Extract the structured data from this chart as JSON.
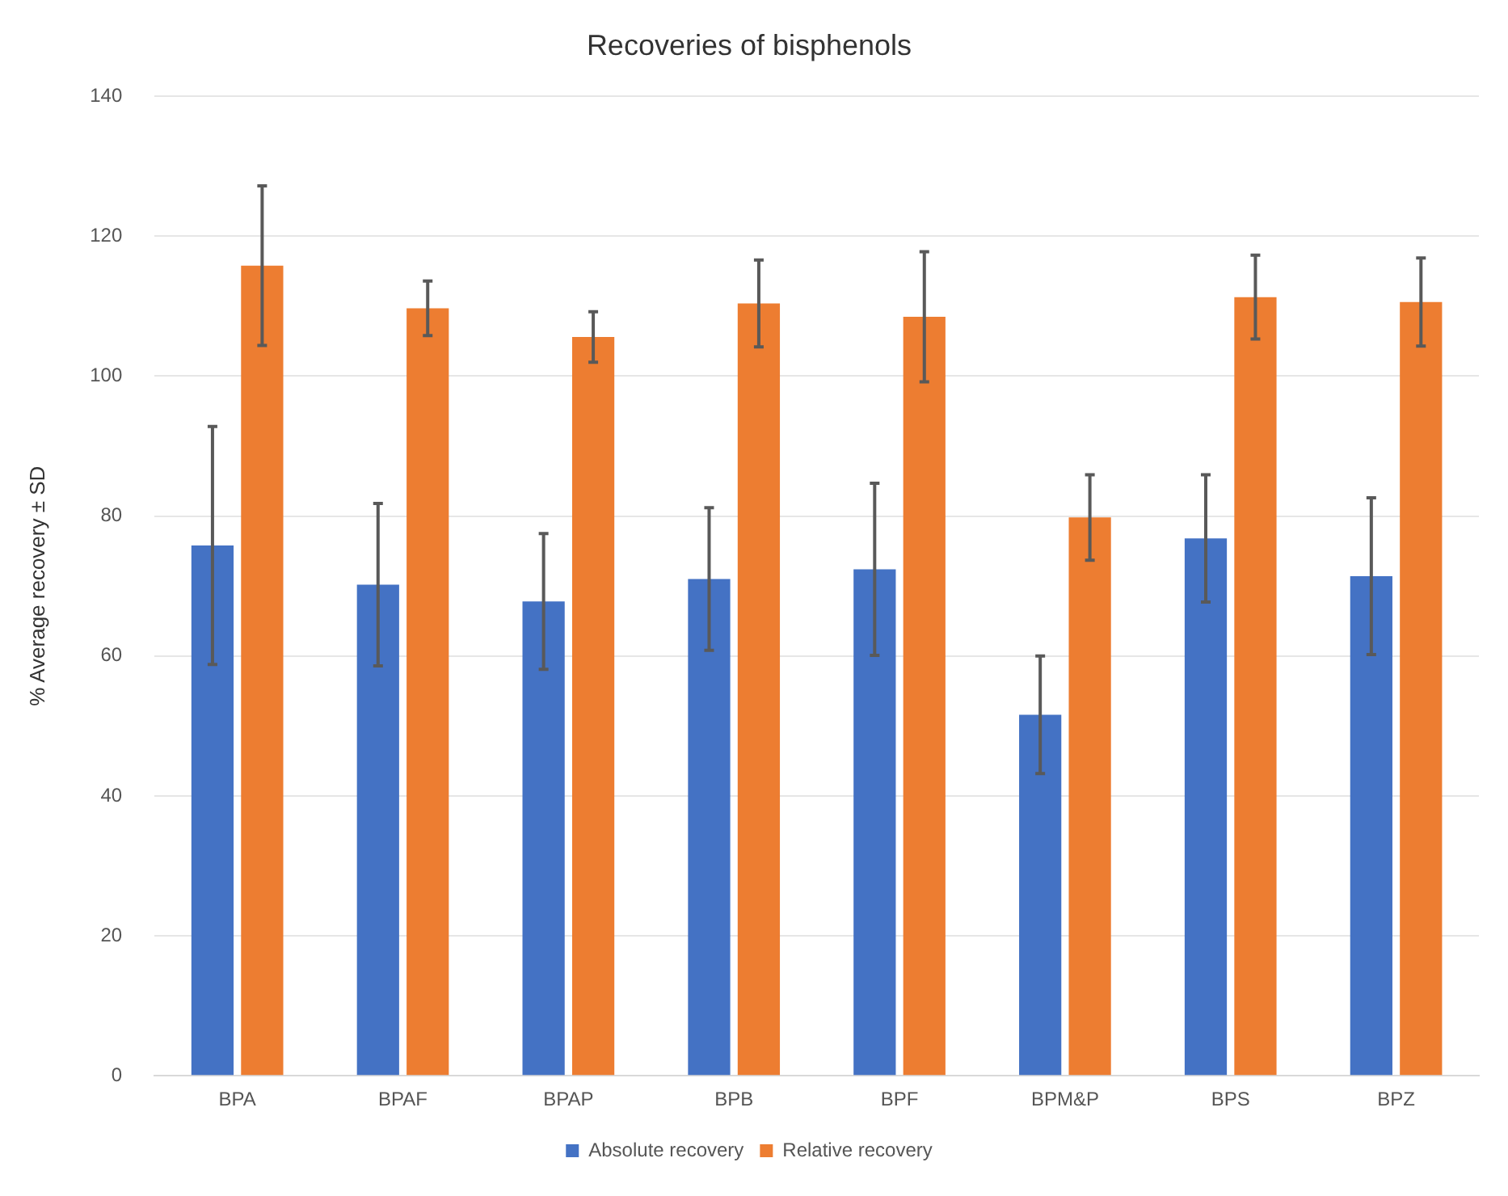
{
  "chart_data": {
    "type": "bar",
    "title": "Recoveries of bisphenols",
    "ylabel": "% Average recovery ± SD",
    "categories": [
      "BPA",
      "BPAF",
      "BPAP",
      "BPB",
      "BPF",
      "BPM&P",
      "BPS",
      "BPZ"
    ],
    "series": [
      {
        "name": "Absolute recovery",
        "color": "#4472c4",
        "values": [
          75.8,
          70.2,
          67.8,
          71.0,
          72.4,
          51.6,
          76.8,
          71.4
        ],
        "errors": [
          17.0,
          11.6,
          9.7,
          10.2,
          12.3,
          8.4,
          9.1,
          11.2
        ]
      },
      {
        "name": "Relative recovery",
        "color": "#ed7d31",
        "values": [
          115.8,
          109.7,
          105.6,
          110.4,
          108.5,
          79.8,
          111.3,
          110.6
        ],
        "errors": [
          11.4,
          3.9,
          3.6,
          6.2,
          9.3,
          6.1,
          6.0,
          6.3
        ]
      }
    ],
    "ylim": [
      0,
      140
    ],
    "yticks": [
      0,
      20,
      40,
      60,
      80,
      100,
      120,
      140
    ],
    "grid": "y",
    "legend": "bottom"
  }
}
